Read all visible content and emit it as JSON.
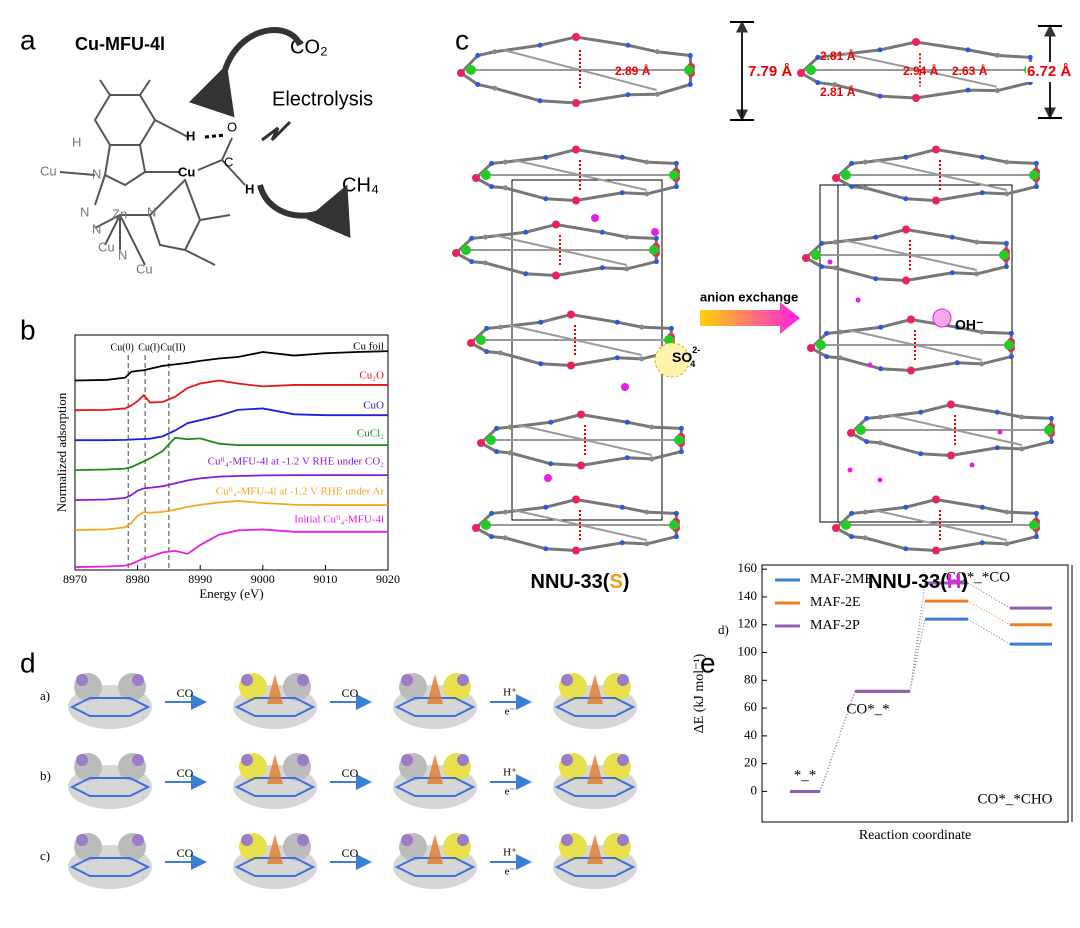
{
  "panel_a": {
    "label": "a",
    "title": "Cu-MFU-4l",
    "reactant": "CO₂",
    "process": "Electrolysis",
    "product": "CH₄",
    "atoms": [
      "H",
      "H",
      "O",
      "C",
      "H",
      "Cu",
      "Cu",
      "N",
      "N",
      "Zn",
      "N",
      "N",
      "Cu",
      "N",
      "Cu"
    ]
  },
  "panel_c": {
    "label": "c",
    "distance_left": "2.89 Å",
    "height_left": "7.79 Å",
    "distances_right": [
      "2.81 Å",
      "2.94 Å",
      "2.63 Å",
      "2.81 Å"
    ],
    "height_right": "6.72 Å",
    "anion_left": {
      "text": "SO",
      "sup": "2-",
      "sub": "4"
    },
    "arrow_label": "anion exchange",
    "anion_right": "OH⁻",
    "name_left": {
      "prefix": "NNU-33(",
      "code": "S",
      "suffix": ")"
    },
    "name_right": {
      "prefix": "NNU-33(",
      "code": "H",
      "suffix": ")"
    }
  },
  "panel_d": {
    "label": "d",
    "rows": [
      "a)",
      "b)",
      "c)"
    ],
    "steps": [
      "CO",
      "CO",
      {
        "top": "H⁺",
        "bottom": "e⁻"
      }
    ]
  },
  "chart_data": [
    {
      "type": "line",
      "label": "b",
      "xlabel": "Energy (eV)",
      "ylabel": "Normalized adsorption",
      "x": [
        8970,
        8975,
        8978,
        8979,
        8980,
        8981,
        8982,
        8984,
        8986,
        8988,
        8990,
        8993,
        8996,
        9000,
        9005,
        9010,
        9015,
        9020
      ],
      "xlim": [
        8970,
        9020
      ],
      "xticks": [
        8970,
        8980,
        8990,
        9000,
        9010,
        9020
      ],
      "ylim": [
        0,
        8
      ],
      "reference_lines": [
        {
          "name": "Cu(0)",
          "x": 8978.5
        },
        {
          "name": "Cu(I)",
          "x": 8981.2
        },
        {
          "name": "Cu(II)",
          "x": 8985
        }
      ],
      "series": [
        {
          "name": "Cu foil",
          "color": "#000000",
          "values": [
            6.45,
            6.47,
            6.55,
            6.75,
            6.78,
            6.8,
            6.85,
            6.95,
            7.0,
            7.05,
            7.12,
            7.2,
            7.25,
            7.42,
            7.3,
            7.38,
            7.42,
            7.45
          ]
        },
        {
          "name": "Cu₂O",
          "color": "#e8141b",
          "values": [
            5.44,
            5.45,
            5.5,
            5.6,
            5.75,
            5.95,
            5.7,
            5.72,
            5.9,
            6.2,
            6.35,
            6.45,
            6.35,
            6.25,
            6.3,
            6.3,
            6.3,
            6.3
          ]
        },
        {
          "name": "CuO",
          "color": "#1f1fd6",
          "values": [
            4.42,
            4.42,
            4.43,
            4.44,
            4.45,
            4.46,
            4.47,
            4.55,
            4.75,
            5.0,
            5.1,
            5.25,
            5.45,
            5.5,
            5.3,
            5.27,
            5.27,
            5.27
          ]
        },
        {
          "name": "CuCl₂",
          "color": "#1a8a1a",
          "values": [
            3.4,
            3.42,
            3.45,
            3.5,
            3.6,
            3.7,
            3.8,
            4.05,
            4.5,
            4.45,
            4.48,
            4.3,
            4.25,
            4.25,
            4.25,
            4.25,
            4.25,
            4.25
          ]
        },
        {
          "name": "Cuᴵᴵ₄-MFU-4l at -1.2 V RHE under CO₂",
          "color": "#8a1ad6",
          "values": [
            2.38,
            2.4,
            2.45,
            2.55,
            2.7,
            2.78,
            2.8,
            2.85,
            2.95,
            3.05,
            3.12,
            3.18,
            3.2,
            3.22,
            3.23,
            3.23,
            3.23,
            3.23
          ]
        },
        {
          "name": "Cuᴵᴵ₄-MFU-4l at -1.2 V RHE under Ar",
          "color": "#f5a623",
          "values": [
            1.36,
            1.38,
            1.45,
            1.6,
            1.85,
            1.97,
            1.95,
            1.98,
            2.05,
            2.15,
            2.22,
            2.3,
            2.35,
            2.28,
            2.22,
            2.21,
            2.21,
            2.21
          ]
        },
        {
          "name": "Initial Cuᴵᴵ₄-MFU-4l",
          "color": "#e61ee6",
          "values": [
            0.1,
            0.12,
            0.15,
            0.2,
            0.3,
            0.4,
            0.45,
            0.6,
            0.65,
            0.55,
            0.85,
            1.2,
            1.35,
            1.38,
            1.3,
            1.3,
            1.3,
            1.3
          ]
        }
      ]
    },
    {
      "type": "level",
      "label": "e",
      "marker": "d)",
      "xlabel": "Reaction coordinate",
      "ylabel": "ΔE (kJ mol⁻¹)",
      "categories": [
        "*_*",
        "CO*_*",
        "CO*_*CO",
        "CO*_*CHO"
      ],
      "ylim": [
        -22,
        163
      ],
      "yticks": [
        0,
        20,
        40,
        60,
        80,
        100,
        120,
        140,
        160
      ],
      "legend": "upper left",
      "series": [
        {
          "name": "MAF-2ME",
          "color": "#3a7fd5",
          "values": [
            0,
            72,
            124,
            106
          ]
        },
        {
          "name": "MAF-2E",
          "color": "#f07f20",
          "values": [
            0,
            72,
            137,
            120
          ]
        },
        {
          "name": "MAF-2P",
          "color": "#8e5fb5",
          "values": [
            0,
            72,
            150,
            132
          ]
        }
      ]
    }
  ]
}
